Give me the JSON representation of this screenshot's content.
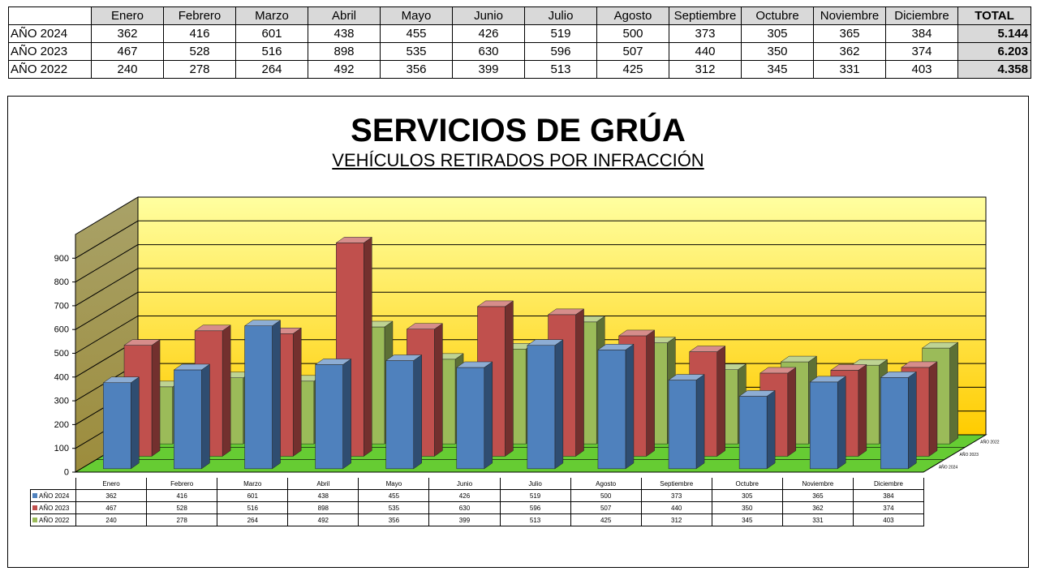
{
  "table": {
    "months": [
      "Enero",
      "Febrero",
      "Marzo",
      "Abril",
      "Mayo",
      "Junio",
      "Julio",
      "Agosto",
      "Septiembre",
      "Octubre",
      "Noviembre",
      "Diciembre"
    ],
    "total_header": "TOTAL",
    "rows": [
      {
        "label": "AÑO 2024",
        "values": [
          "362",
          "416",
          "601",
          "438",
          "455",
          "426",
          "519",
          "500",
          "373",
          "305",
          "365",
          "384"
        ],
        "total": "5.144"
      },
      {
        "label": "AÑO 2023",
        "values": [
          "467",
          "528",
          "516",
          "898",
          "535",
          "630",
          "596",
          "507",
          "440",
          "350",
          "362",
          "374"
        ],
        "total": "6.203"
      },
      {
        "label": "AÑO 2022",
        "values": [
          "240",
          "278",
          "264",
          "492",
          "356",
          "399",
          "513",
          "425",
          "312",
          "345",
          "331",
          "403"
        ],
        "total": "4.358"
      }
    ]
  },
  "chart_data": {
    "type": "bar",
    "title": "SERVICIOS DE GRÚA",
    "subtitle": "VEHÍCULOS RETIRADOS POR INFRACCIÓN",
    "categories": [
      "Enero",
      "Febrero",
      "Marzo",
      "Abril",
      "Mayo",
      "Junio",
      "Julio",
      "Agosto",
      "Septiembre",
      "Octubre",
      "Noviembre",
      "Diciembre"
    ],
    "series": [
      {
        "name": "AÑO 2024",
        "values": [
          362,
          416,
          601,
          438,
          455,
          426,
          519,
          500,
          373,
          305,
          365,
          384
        ],
        "color": "#4f81bd"
      },
      {
        "name": "AÑO 2023",
        "values": [
          467,
          528,
          516,
          898,
          535,
          630,
          596,
          507,
          440,
          350,
          362,
          374
        ],
        "color": "#c0504d"
      },
      {
        "name": "AÑO 2022",
        "values": [
          240,
          278,
          264,
          492,
          356,
          399,
          513,
          425,
          312,
          345,
          331,
          403
        ],
        "color": "#9bbb59"
      }
    ],
    "y_ticks": [
      "0",
      "100",
      "200",
      "300",
      "400",
      "500",
      "600",
      "700",
      "800",
      "900"
    ],
    "ylim": [
      0,
      1000
    ],
    "grid": true,
    "legend": "data table below chart",
    "style": "3d-clustered-depth",
    "colors": {
      "back_wall_top": "#ffffa0",
      "back_wall_bottom": "#ffcc00",
      "floor": "#66cc33",
      "side_wall": "#9c8c3c"
    }
  }
}
